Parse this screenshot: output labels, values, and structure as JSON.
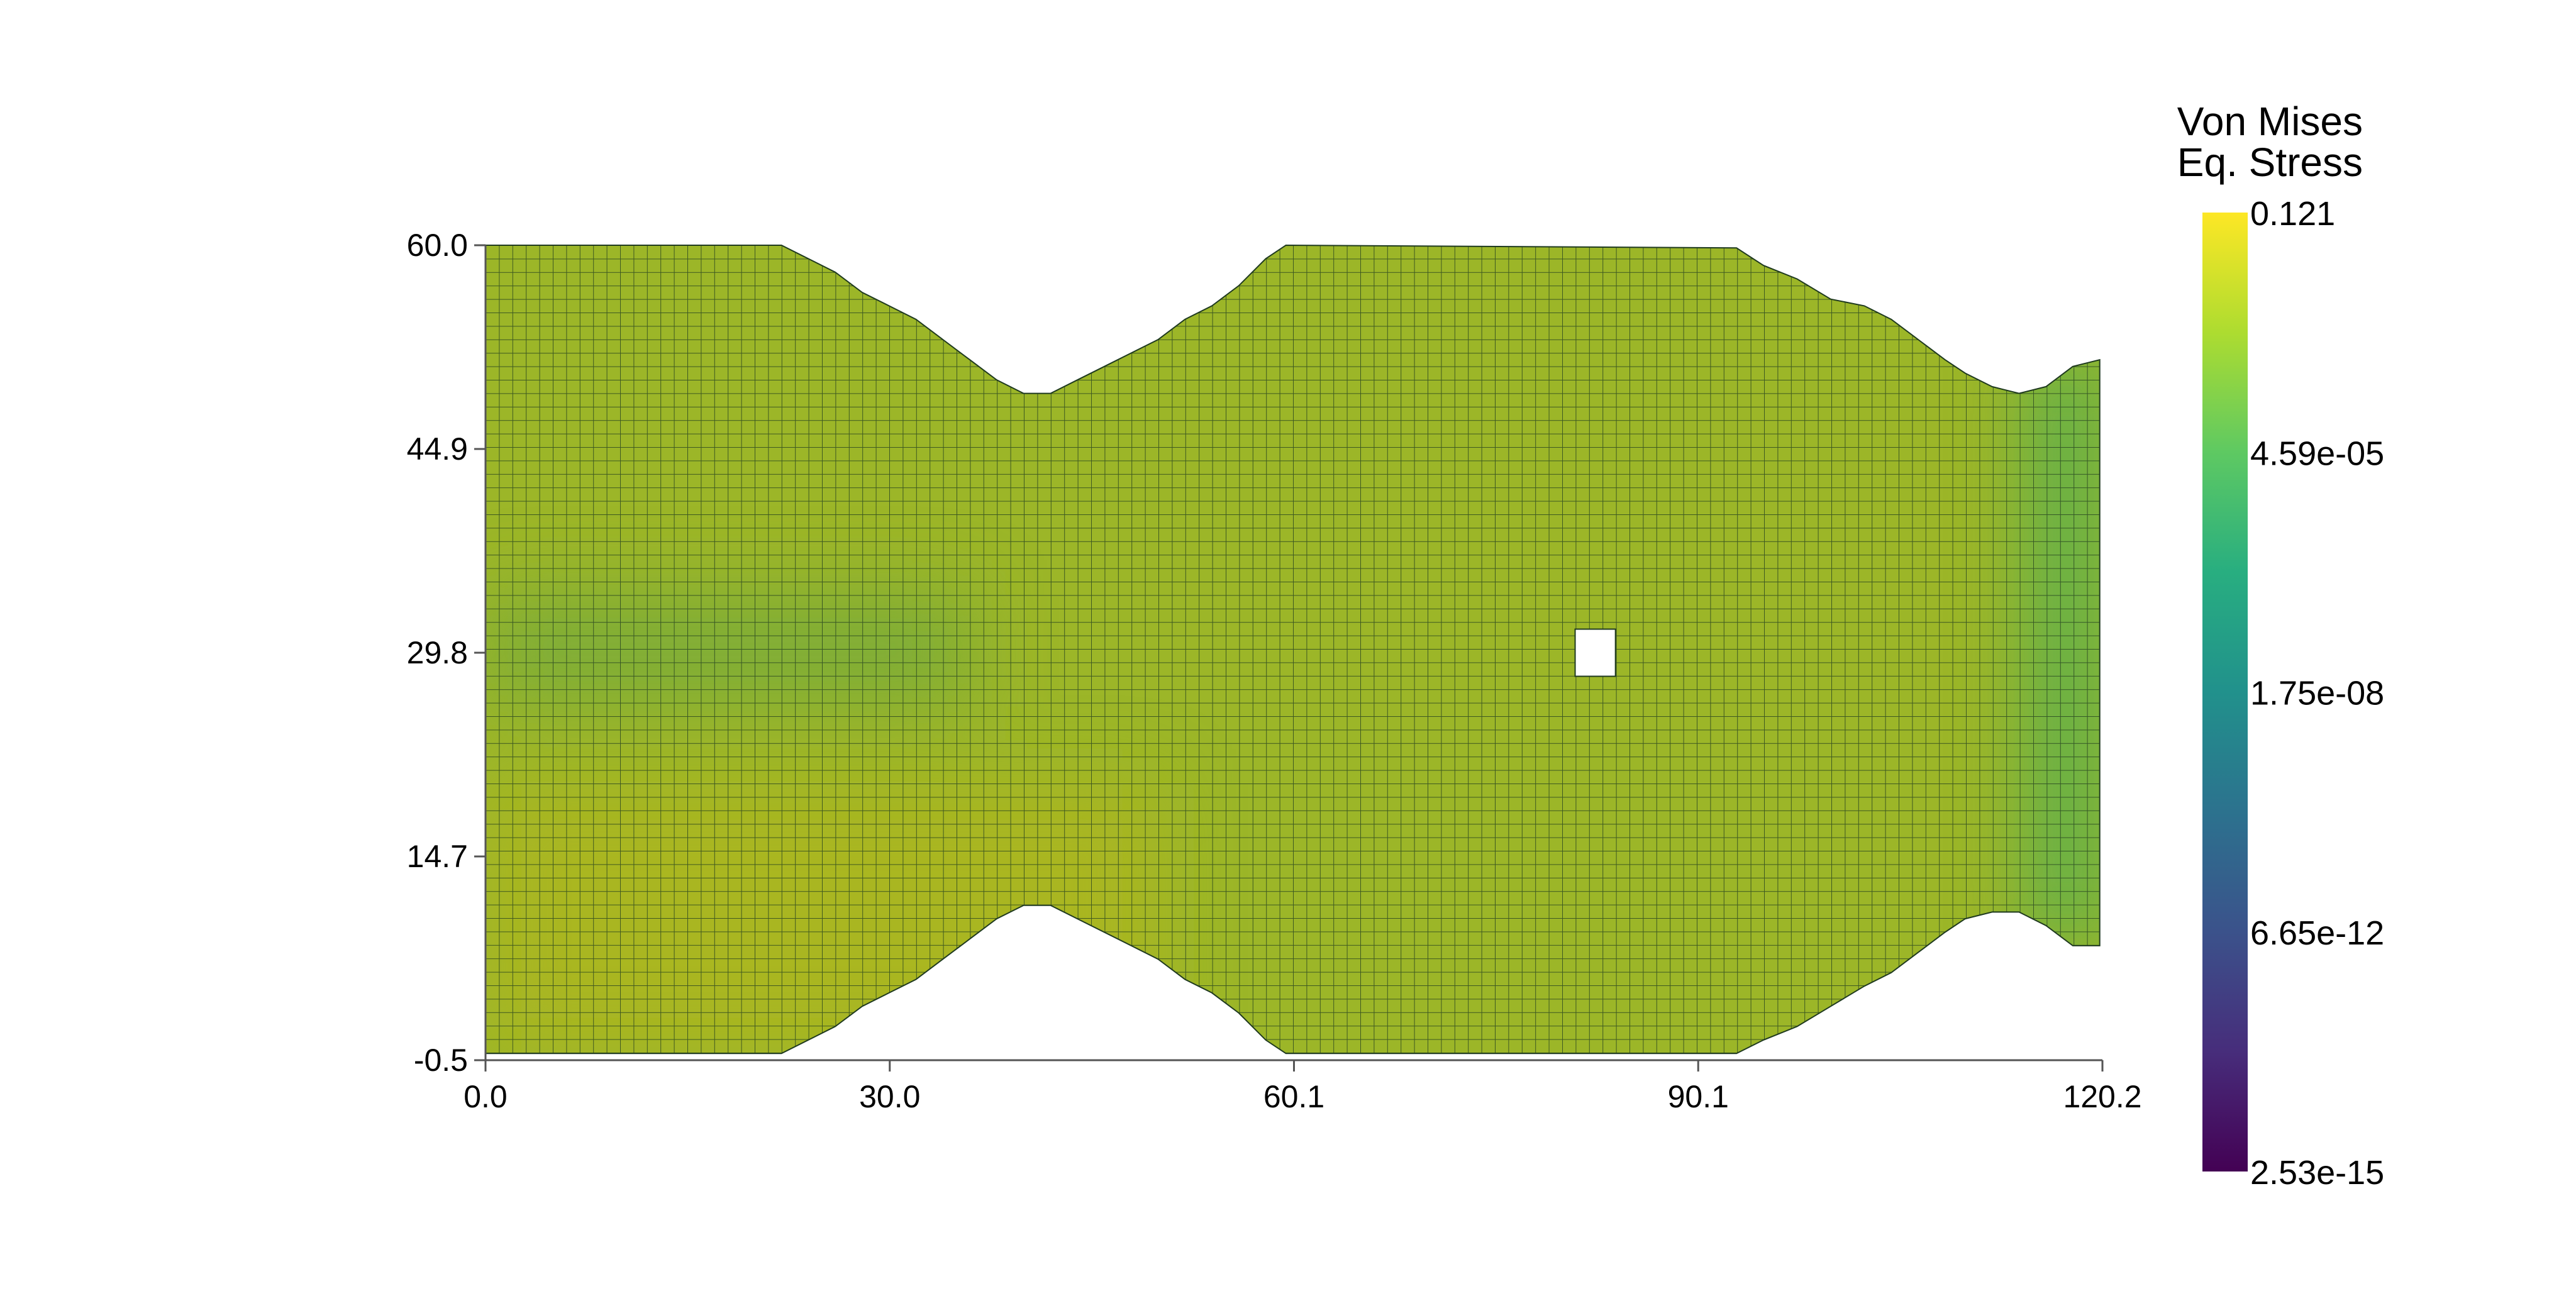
{
  "chart_data": {
    "type": "heatmap",
    "title": "",
    "xlabel": "",
    "ylabel": "",
    "xlim": [
      0.0,
      120.2
    ],
    "ylim": [
      -0.5,
      60.0
    ],
    "x_ticks": [
      "0.0",
      "30.0",
      "60.1",
      "90.1",
      "120.2"
    ],
    "y_ticks": [
      "60.0",
      "44.9",
      "29.8",
      "14.7",
      "-0.5"
    ],
    "grid": "mesh cells outlined",
    "field": "Von Mises Eq. Stress",
    "scale": "log",
    "colormap": "viridis",
    "colorbar": {
      "title_line1": "Von Mises",
      "title_line2": "Eq. Stress",
      "labels": [
        "0.121",
        "4.59e-05",
        "1.75e-08",
        "6.65e-12",
        "2.53e-15"
      ],
      "min": 2.53e-15,
      "max": 0.121
    },
    "shape_top_profile": [
      [
        0.0,
        60.0
      ],
      [
        22.0,
        60.0
      ],
      [
        24.0,
        59.0
      ],
      [
        26.0,
        58.0
      ],
      [
        28.0,
        56.5
      ],
      [
        30.0,
        55.5
      ],
      [
        32.0,
        54.5
      ],
      [
        34.0,
        53.0
      ],
      [
        36.0,
        51.5
      ],
      [
        38.0,
        50.0
      ],
      [
        40.0,
        49.0
      ],
      [
        42.0,
        49.0
      ],
      [
        44.0,
        50.0
      ],
      [
        46.0,
        51.0
      ],
      [
        48.0,
        52.0
      ],
      [
        50.0,
        53.0
      ],
      [
        52.0,
        54.5
      ],
      [
        54.0,
        55.5
      ],
      [
        56.0,
        57.0
      ],
      [
        58.0,
        59.0
      ],
      [
        59.5,
        60.0
      ],
      [
        93.0,
        59.8
      ],
      [
        95.0,
        58.5
      ],
      [
        97.5,
        57.5
      ],
      [
        100.0,
        56.0
      ],
      [
        102.5,
        55.5
      ],
      [
        104.5,
        54.5
      ],
      [
        106.5,
        53.0
      ],
      [
        108.5,
        51.5
      ],
      [
        110.0,
        50.5
      ],
      [
        112.0,
        49.5
      ],
      [
        114.0,
        49.0
      ],
      [
        116.0,
        49.5
      ],
      [
        118.0,
        51.0
      ],
      [
        120.0,
        51.5
      ]
    ],
    "shape_bottom_profile": [
      [
        0.0,
        0.0
      ],
      [
        22.0,
        0.0
      ],
      [
        24.0,
        1.0
      ],
      [
        26.0,
        2.0
      ],
      [
        28.0,
        3.5
      ],
      [
        30.0,
        4.5
      ],
      [
        32.0,
        5.5
      ],
      [
        34.0,
        7.0
      ],
      [
        36.0,
        8.5
      ],
      [
        38.0,
        10.0
      ],
      [
        40.0,
        11.0
      ],
      [
        42.0,
        11.0
      ],
      [
        44.0,
        10.0
      ],
      [
        46.0,
        9.0
      ],
      [
        48.0,
        8.0
      ],
      [
        50.0,
        7.0
      ],
      [
        52.0,
        5.5
      ],
      [
        54.0,
        4.5
      ],
      [
        56.0,
        3.0
      ],
      [
        58.0,
        1.0
      ],
      [
        59.5,
        0.0
      ],
      [
        93.0,
        0.0
      ],
      [
        95.0,
        1.0
      ],
      [
        97.5,
        2.0
      ],
      [
        100.0,
        3.5
      ],
      [
        102.5,
        5.0
      ],
      [
        104.5,
        6.0
      ],
      [
        106.5,
        7.5
      ],
      [
        108.5,
        9.0
      ],
      [
        110.0,
        10.0
      ],
      [
        112.0,
        10.5
      ],
      [
        114.0,
        10.5
      ],
      [
        116.0,
        9.5
      ],
      [
        118.0,
        8.0
      ],
      [
        120.0,
        8.0
      ]
    ],
    "hole": {
      "x": [
        81.0,
        84.0
      ],
      "y": [
        28.0,
        31.5
      ]
    },
    "stress_regions": [
      {
        "name": "near-root band",
        "x": [
          0,
          36
        ],
        "y": [
          26,
          34
        ],
        "color": "#7aab3a"
      },
      {
        "name": "right tip",
        "x": [
          115,
          120
        ],
        "y": [
          8,
          52
        ],
        "color": "#4caf58"
      },
      {
        "name": "lower-left",
        "x": [
          0,
          50
        ],
        "y": [
          0,
          20
        ],
        "color": "#acb61e"
      },
      {
        "name": "body",
        "x": [
          0,
          120
        ],
        "y": [
          0,
          60
        ],
        "color": "#9cb628"
      }
    ],
    "colors": {
      "edge": "#1f3a1f",
      "axis": "#555555",
      "body_base": "#9cb628"
    }
  }
}
